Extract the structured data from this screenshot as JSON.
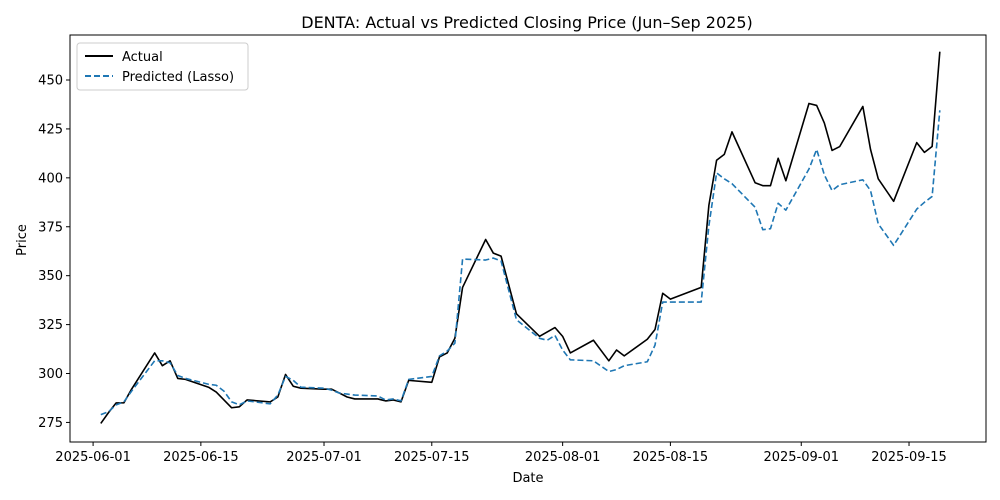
{
  "chart_data": {
    "type": "line",
    "title": "DENTA: Actual vs Predicted Closing Price (Jun–Sep 2025)",
    "xlabel": "Date",
    "ylabel": "Price",
    "xlim": [
      "2025-05-29",
      "2025-09-25"
    ],
    "ylim": [
      265,
      473
    ],
    "x_ticks": [
      "2025-06-01",
      "2025-06-15",
      "2025-07-01",
      "2025-07-15",
      "2025-08-01",
      "2025-08-15",
      "2025-09-01",
      "2025-09-15"
    ],
    "y_ticks": [
      275,
      300,
      325,
      350,
      375,
      400,
      425,
      450
    ],
    "grid": false,
    "legend_position": "upper left",
    "series": [
      {
        "name": "Actual",
        "color": "#000000",
        "dash": "solid",
        "points": [
          [
            "2025-06-02",
            274.5
          ],
          [
            "2025-06-03",
            280
          ],
          [
            "2025-06-04",
            285
          ],
          [
            "2025-06-05",
            285
          ],
          [
            "2025-06-06",
            292
          ],
          [
            "2025-06-09",
            310.5
          ],
          [
            "2025-06-10",
            304
          ],
          [
            "2025-06-11",
            306.5
          ],
          [
            "2025-06-12",
            297.5
          ],
          [
            "2025-06-13",
            297
          ],
          [
            "2025-06-16",
            293
          ],
          [
            "2025-06-17",
            290.5
          ],
          [
            "2025-06-18",
            286.5
          ],
          [
            "2025-06-19",
            282.5
          ],
          [
            "2025-06-20",
            283
          ],
          [
            "2025-06-21",
            286.5
          ],
          [
            "2025-06-24",
            285.5
          ],
          [
            "2025-06-25",
            288
          ],
          [
            "2025-06-26",
            299.5
          ],
          [
            "2025-06-27",
            293.5
          ],
          [
            "2025-06-28",
            292.5
          ],
          [
            "2025-07-01",
            292
          ],
          [
            "2025-07-02",
            292
          ],
          [
            "2025-07-03",
            290
          ],
          [
            "2025-07-04",
            288
          ],
          [
            "2025-07-05",
            287
          ],
          [
            "2025-07-08",
            287
          ],
          [
            "2025-07-09",
            286
          ],
          [
            "2025-07-10",
            286.5
          ],
          [
            "2025-07-11",
            285.5
          ],
          [
            "2025-07-12",
            296.5
          ],
          [
            "2025-07-15",
            295.5
          ],
          [
            "2025-07-16",
            308.5
          ],
          [
            "2025-07-17",
            310.5
          ],
          [
            "2025-07-18",
            318
          ],
          [
            "2025-07-19",
            344
          ],
          [
            "2025-07-22",
            368.5
          ],
          [
            "2025-07-23",
            361.5
          ],
          [
            "2025-07-24",
            360
          ],
          [
            "2025-07-26",
            330.5
          ],
          [
            "2025-07-29",
            319
          ],
          [
            "2025-07-31",
            323.5
          ],
          [
            "2025-08-01",
            319
          ],
          [
            "2025-08-02",
            310.5
          ],
          [
            "2025-08-05",
            317
          ],
          [
            "2025-08-07",
            306.5
          ],
          [
            "2025-08-08",
            312
          ],
          [
            "2025-08-09",
            309
          ],
          [
            "2025-08-12",
            317.5
          ],
          [
            "2025-08-13",
            322.5
          ],
          [
            "2025-08-14",
            341
          ],
          [
            "2025-08-15",
            338
          ],
          [
            "2025-08-19",
            344
          ],
          [
            "2025-08-20",
            386
          ],
          [
            "2025-08-21",
            409
          ],
          [
            "2025-08-22",
            412
          ],
          [
            "2025-08-23",
            423.5
          ],
          [
            "2025-08-26",
            397.5
          ],
          [
            "2025-08-27",
            396
          ],
          [
            "2025-08-28",
            396
          ],
          [
            "2025-08-29",
            410
          ],
          [
            "2025-08-30",
            398.5
          ],
          [
            "2025-09-02",
            438
          ],
          [
            "2025-09-03",
            437
          ],
          [
            "2025-09-04",
            428
          ],
          [
            "2025-09-05",
            414
          ],
          [
            "2025-09-06",
            416
          ],
          [
            "2025-09-09",
            436.5
          ],
          [
            "2025-09-10",
            414.5
          ],
          [
            "2025-09-11",
            399.5
          ],
          [
            "2025-09-13",
            388
          ],
          [
            "2025-09-16",
            418
          ],
          [
            "2025-09-17",
            413
          ],
          [
            "2025-09-18",
            416
          ],
          [
            "2025-09-19",
            464.5
          ]
        ]
      },
      {
        "name": "Predicted (Lasso)",
        "color": "#1f77b4",
        "dash": "dashed",
        "points": [
          [
            "2025-06-02",
            279
          ],
          [
            "2025-06-03",
            280.5
          ],
          [
            "2025-06-04",
            284
          ],
          [
            "2025-06-05",
            285.5
          ],
          [
            "2025-06-06",
            291
          ],
          [
            "2025-06-09",
            306.5
          ],
          [
            "2025-06-10",
            306.5
          ],
          [
            "2025-06-11",
            305.5
          ],
          [
            "2025-06-12",
            299
          ],
          [
            "2025-06-13",
            297.5
          ],
          [
            "2025-06-16",
            294.5
          ],
          [
            "2025-06-17",
            294
          ],
          [
            "2025-06-18",
            291
          ],
          [
            "2025-06-19",
            285.5
          ],
          [
            "2025-06-20",
            284
          ],
          [
            "2025-06-21",
            286
          ],
          [
            "2025-06-24",
            284.5
          ],
          [
            "2025-06-25",
            289
          ],
          [
            "2025-06-26",
            298.5
          ],
          [
            "2025-06-27",
            296.5
          ],
          [
            "2025-06-28",
            293
          ],
          [
            "2025-07-01",
            292.5
          ],
          [
            "2025-07-02",
            291.5
          ],
          [
            "2025-07-03",
            290
          ],
          [
            "2025-07-04",
            289.5
          ],
          [
            "2025-07-05",
            289
          ],
          [
            "2025-07-08",
            288.5
          ],
          [
            "2025-07-09",
            286.5
          ],
          [
            "2025-07-10",
            287
          ],
          [
            "2025-07-11",
            286
          ],
          [
            "2025-07-12",
            297
          ],
          [
            "2025-07-15",
            298.5
          ],
          [
            "2025-07-16",
            309
          ],
          [
            "2025-07-17",
            311.5
          ],
          [
            "2025-07-18",
            315.5
          ],
          [
            "2025-07-19",
            358.5
          ],
          [
            "2025-07-22",
            358
          ],
          [
            "2025-07-23",
            359
          ],
          [
            "2025-07-24",
            357.5
          ],
          [
            "2025-07-26",
            327.5
          ],
          [
            "2025-07-29",
            318
          ],
          [
            "2025-07-30",
            317
          ],
          [
            "2025-07-31",
            319.5
          ],
          [
            "2025-08-01",
            312
          ],
          [
            "2025-08-02",
            307
          ],
          [
            "2025-08-05",
            306.5
          ],
          [
            "2025-08-07",
            301
          ],
          [
            "2025-08-08",
            302
          ],
          [
            "2025-08-09",
            304
          ],
          [
            "2025-08-12",
            306
          ],
          [
            "2025-08-13",
            314.5
          ],
          [
            "2025-08-14",
            336.5
          ],
          [
            "2025-08-19",
            336.5
          ],
          [
            "2025-08-20",
            375.5
          ],
          [
            "2025-08-21",
            402.5
          ],
          [
            "2025-08-22",
            399.5
          ],
          [
            "2025-08-23",
            397
          ],
          [
            "2025-08-26",
            385
          ],
          [
            "2025-08-27",
            373.5
          ],
          [
            "2025-08-28",
            374
          ],
          [
            "2025-08-29",
            387
          ],
          [
            "2025-08-30",
            383.5
          ],
          [
            "2025-09-02",
            404.5
          ],
          [
            "2025-09-03",
            414.5
          ],
          [
            "2025-09-04",
            401.5
          ],
          [
            "2025-09-05",
            393.5
          ],
          [
            "2025-09-06",
            396.5
          ],
          [
            "2025-09-09",
            399
          ],
          [
            "2025-09-10",
            393.5
          ],
          [
            "2025-09-11",
            376.5
          ],
          [
            "2025-09-13",
            365.5
          ],
          [
            "2025-09-16",
            384
          ],
          [
            "2025-09-17",
            387.5
          ],
          [
            "2025-09-18",
            390.5
          ],
          [
            "2025-09-19",
            434.5
          ]
        ]
      }
    ]
  }
}
